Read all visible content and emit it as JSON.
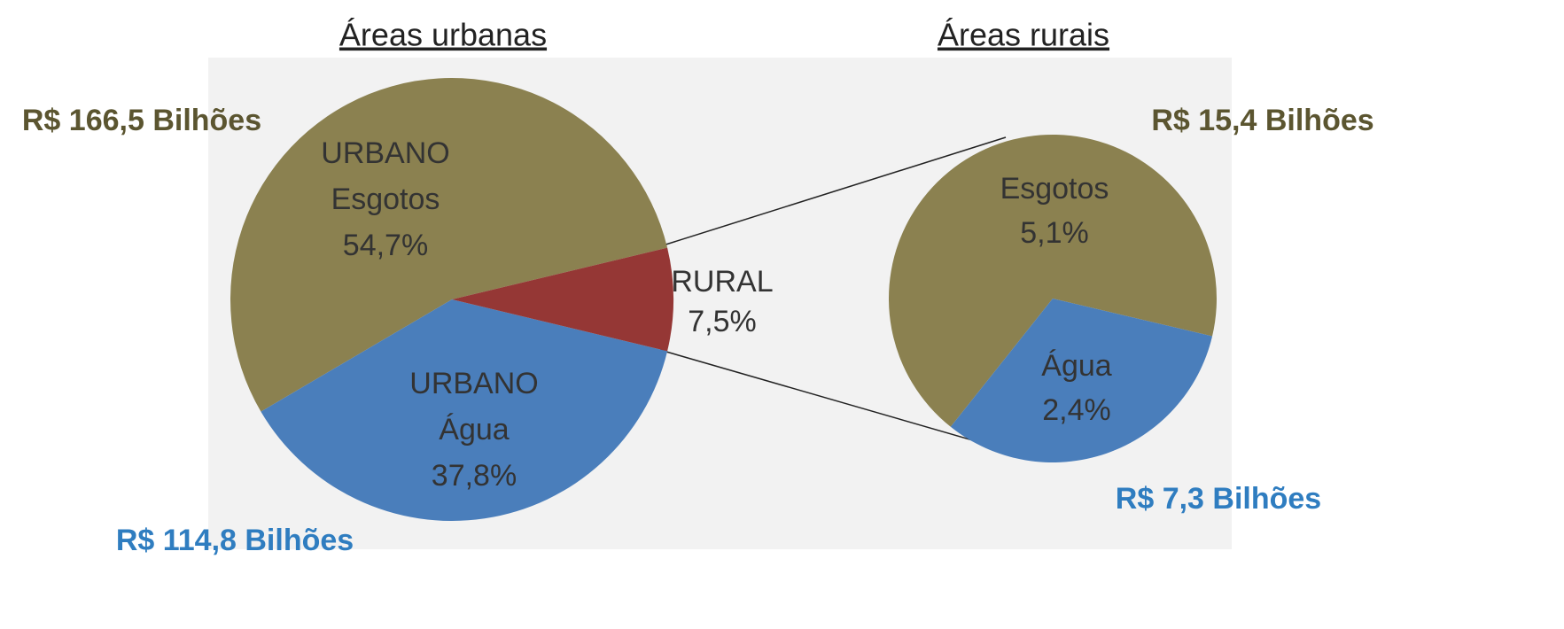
{
  "chart_data": [
    {
      "type": "pie",
      "title": "Áreas urbanas",
      "categories": [
        [
          "URBANO",
          "Esgotos"
        ],
        [
          "URBANO",
          "Água"
        ],
        [
          "RURAL"
        ]
      ],
      "values": [
        54.7,
        37.8,
        7.5
      ],
      "value_labels": [
        "54,7%",
        "37,8%",
        "7,5%"
      ],
      "colors": [
        "#8b8150",
        "#4a7ebb",
        "#953735"
      ],
      "annotations": [
        {
          "text": "R$ 166,5 Bilhões",
          "color": "#5b5530"
        },
        {
          "text": "R$ 114,8 Bilhões",
          "color": "#2f7dc0"
        }
      ]
    },
    {
      "type": "pie",
      "title": "Áreas rurais",
      "categories": [
        [
          "Esgotos"
        ],
        [
          "Água"
        ]
      ],
      "values": [
        5.1,
        2.4
      ],
      "value_labels": [
        "5,1%",
        "2,4%"
      ],
      "colors": [
        "#8b8150",
        "#4a7ebb"
      ],
      "annotations": [
        {
          "text": "R$ 15,4 Bilhões",
          "color": "#5b5530"
        },
        {
          "text": "R$ 7,3 Bilhões",
          "color": "#2f7dc0"
        }
      ]
    }
  ]
}
